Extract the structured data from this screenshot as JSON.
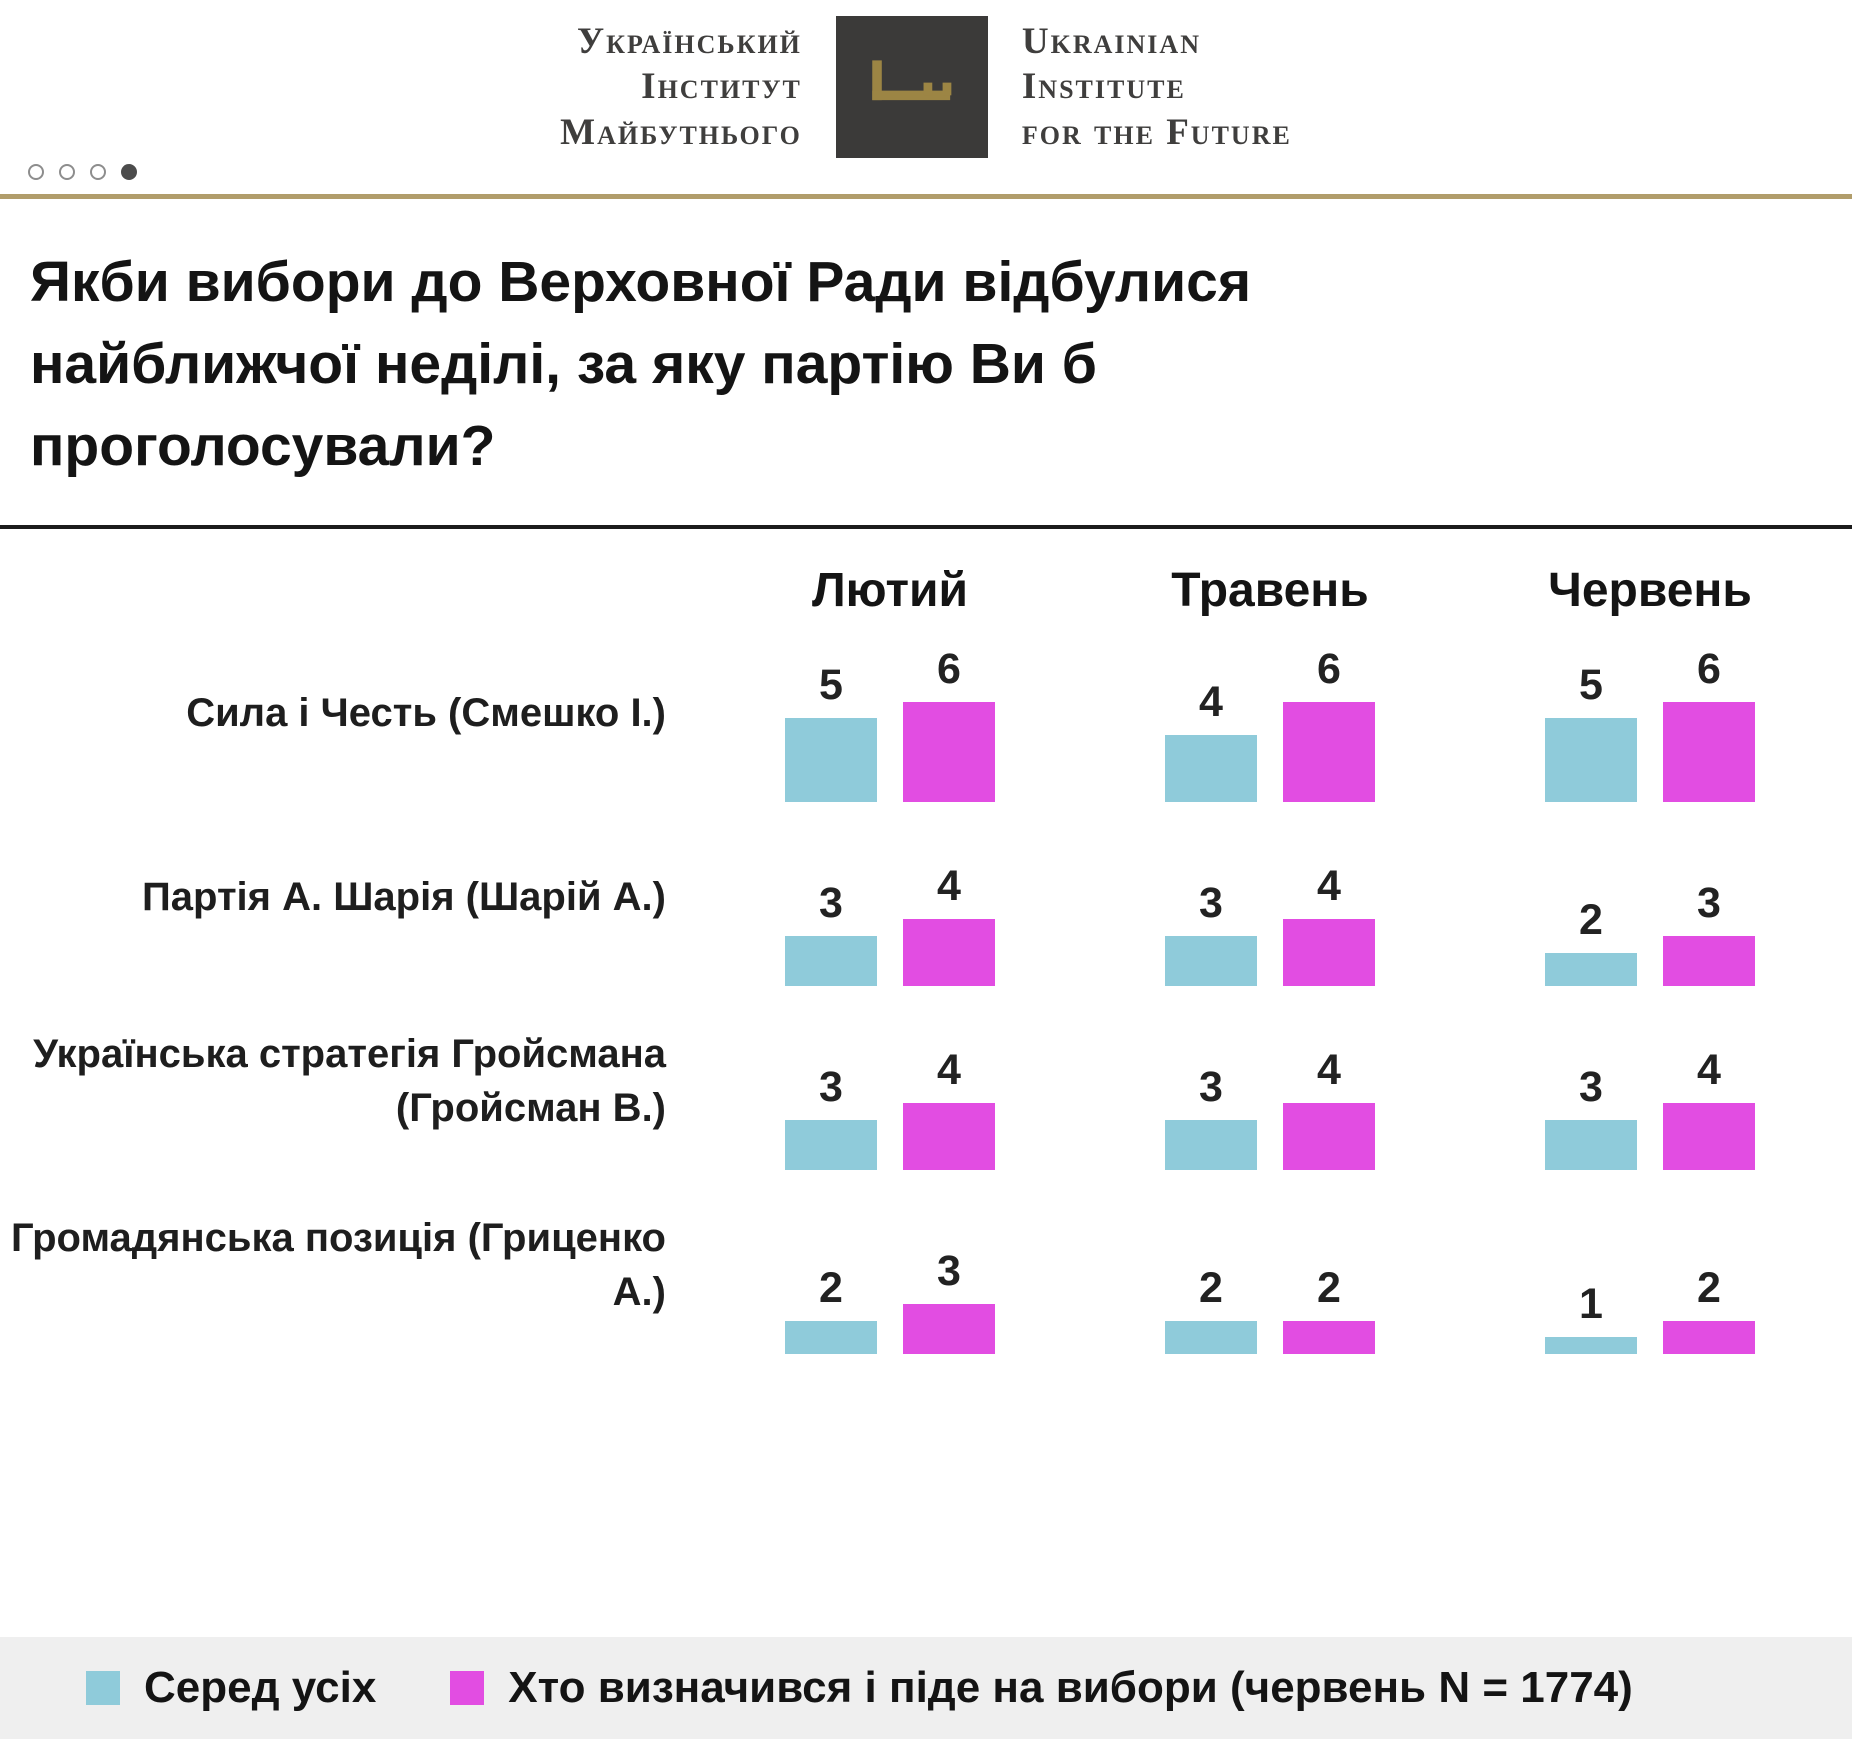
{
  "header": {
    "logo_uk": [
      "Український",
      "Інститут",
      "Майбутнього"
    ],
    "logo_en": [
      "Ukrainian",
      "Institute",
      "for the Future"
    ]
  },
  "pagination": {
    "count": 4,
    "active_index": 3
  },
  "title": "Якби вибори до Верховної Ради відбулися найближчої неділі, за яку партію Ви б проголосували?",
  "chart_data": {
    "type": "bar",
    "months": [
      "Лютий",
      "Травень",
      "Червень"
    ],
    "rows": [
      {
        "party": "Сила і Честь (Смешко І.)",
        "values": [
          [
            5,
            6
          ],
          [
            4,
            6
          ],
          [
            5,
            6
          ]
        ]
      },
      {
        "party": "Партія А. Шарія (Шарій А.)",
        "values": [
          [
            3,
            4
          ],
          [
            3,
            4
          ],
          [
            2,
            3
          ]
        ]
      },
      {
        "party": "Українська стратегія Гройсмана (Гройсман В.)",
        "values": [
          [
            3,
            4
          ],
          [
            3,
            4
          ],
          [
            3,
            4
          ]
        ]
      },
      {
        "party": "Громадянська позиція (Гриценко А.)",
        "values": [
          [
            2,
            3
          ],
          [
            2,
            2
          ],
          [
            1,
            2
          ]
        ]
      }
    ],
    "series": [
      {
        "name": "Серед усіх",
        "color": "#8fcbda"
      },
      {
        "name": "Хто визначився і піде на вибори (червень N = 1774)",
        "color": "#e24de2"
      }
    ],
    "legend": [
      {
        "label": "Серед усіх",
        "color": "#8fcbda"
      },
      {
        "label": "Хто визначився і піде на вибори (червень N = 1774)",
        "color": "#e24de2"
      }
    ],
    "value_range": [
      0,
      6
    ],
    "grid": false,
    "legend_position": "bottom"
  },
  "colors": {
    "accent_gold": "#b19d6b",
    "logo_square": "#3b3a39",
    "key_gold": "#9c8544",
    "legend_background": "#efefef"
  }
}
